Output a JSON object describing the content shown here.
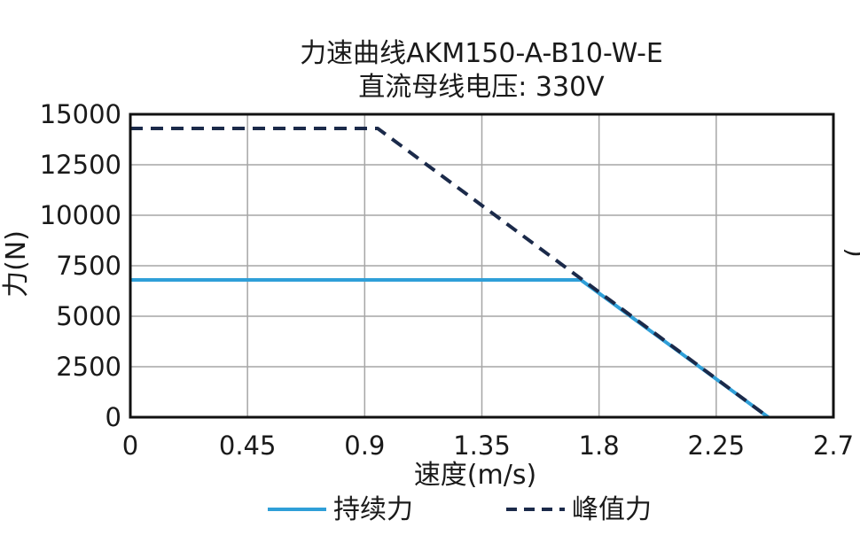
{
  "chart_data": {
    "type": "line",
    "title": "力速曲线AKM150-A-B10-W-E",
    "subtitle": "直流母线电压: 330V",
    "xlabel": "速度(m/s)",
    "ylabel": "力(N)",
    "right_ylabel": "(",
    "xlim": [
      0,
      2.7
    ],
    "ylim": [
      0,
      15000
    ],
    "xticks": [
      0,
      0.45,
      0.9,
      1.35,
      1.8,
      2.25,
      2.7
    ],
    "xtick_labels": [
      "0",
      "0.45",
      "0.9",
      "1.35",
      "1.8",
      "2.25",
      "2.7"
    ],
    "yticks": [
      0,
      2500,
      5000,
      7500,
      10000,
      12500,
      15000
    ],
    "ytick_labels": [
      "0",
      "2500",
      "5000",
      "7500",
      "10000",
      "12500",
      "15000"
    ],
    "grid": true,
    "legend_position": "bottom",
    "series": [
      {
        "name": "持续力",
        "color": "#2f9fd8",
        "style": "solid",
        "x": [
          0,
          1.73,
          2.45
        ],
        "y": [
          6800,
          6800,
          0
        ]
      },
      {
        "name": "峰值力",
        "color": "#1b2a4a",
        "style": "dashed",
        "x": [
          0,
          0.95,
          2.45
        ],
        "y": [
          14300,
          14300,
          0
        ]
      }
    ]
  }
}
